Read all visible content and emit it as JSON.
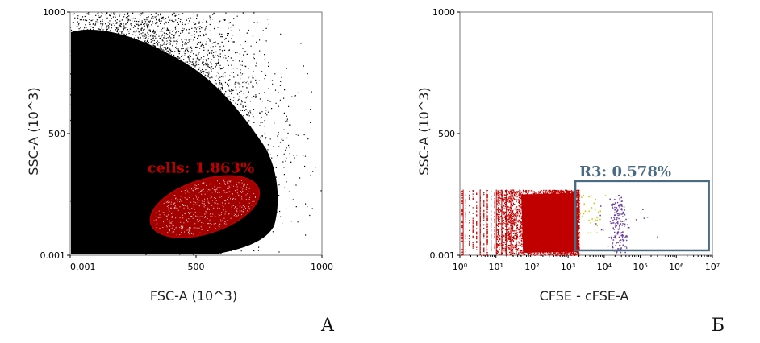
{
  "chart_data": [
    {
      "type": "scatter",
      "panel_label": "А",
      "xlabel": "FSC-A (10^3)",
      "ylabel": "SSC-A (10^3)",
      "xlim": [
        0.001,
        1000
      ],
      "ylim": [
        0.001,
        1000
      ],
      "x_ticks": [
        "0.001",
        "500",
        "1000"
      ],
      "y_ticks": [
        "0.001",
        "500",
        "1000"
      ],
      "x_tick_values": [
        0.001,
        500,
        1000
      ],
      "y_tick_values": [
        0.001,
        500,
        1000
      ],
      "grid": false,
      "series": [
        {
          "color": "#000000",
          "points_description": "dense population filling lower-left, tapering to upper-right",
          "center": [
            250,
            650
          ],
          "spread": [
            200,
            260
          ]
        }
      ],
      "gate": {
        "shape": "ellipse",
        "label": "cells: 1.863%",
        "color": "#c00000",
        "center": [
          535,
          200
        ],
        "radii": [
          225,
          110
        ],
        "rotation_deg": -18
      }
    },
    {
      "type": "scatter",
      "panel_label": "Б",
      "xlabel": "CFSE - cFSE-A",
      "ylabel": "SSC-A (10^3)",
      "xscale": "log",
      "xlim": [
        1,
        10000000
      ],
      "ylim": [
        0.001,
        1000
      ],
      "x_ticks": [
        "10⁰",
        "10¹",
        "10²",
        "10³",
        "10⁴",
        "10⁵",
        "10⁶",
        "10⁷"
      ],
      "x_tick_values": [
        1,
        10,
        100,
        1000,
        10000,
        100000,
        1000000,
        10000000
      ],
      "y_ticks": [
        "0.001",
        "500",
        "1000"
      ],
      "y_tick_values": [
        0.001,
        500,
        1000
      ],
      "grid": false,
      "series": [
        {
          "color": "#c00000",
          "points_description": "main CFSE-negative population",
          "x_range_log": [
            0,
            3.3
          ],
          "y_range": [
            0.001,
            270
          ]
        },
        {
          "color": "#6a3fa0",
          "points_description": "purple events inside R3",
          "x_center_log": 4.4,
          "y_range": [
            10,
            250
          ]
        },
        {
          "color": "#c8c800",
          "points_description": "yellow events inside R3",
          "x_center_log": 3.6,
          "y_range": [
            80,
            250
          ]
        }
      ],
      "gate": {
        "shape": "rectangle",
        "label": "R3: 0.578%",
        "color": "#4a6b82",
        "x_range": [
          1585,
          8000000
        ],
        "y_range": [
          20,
          305
        ]
      }
    }
  ]
}
